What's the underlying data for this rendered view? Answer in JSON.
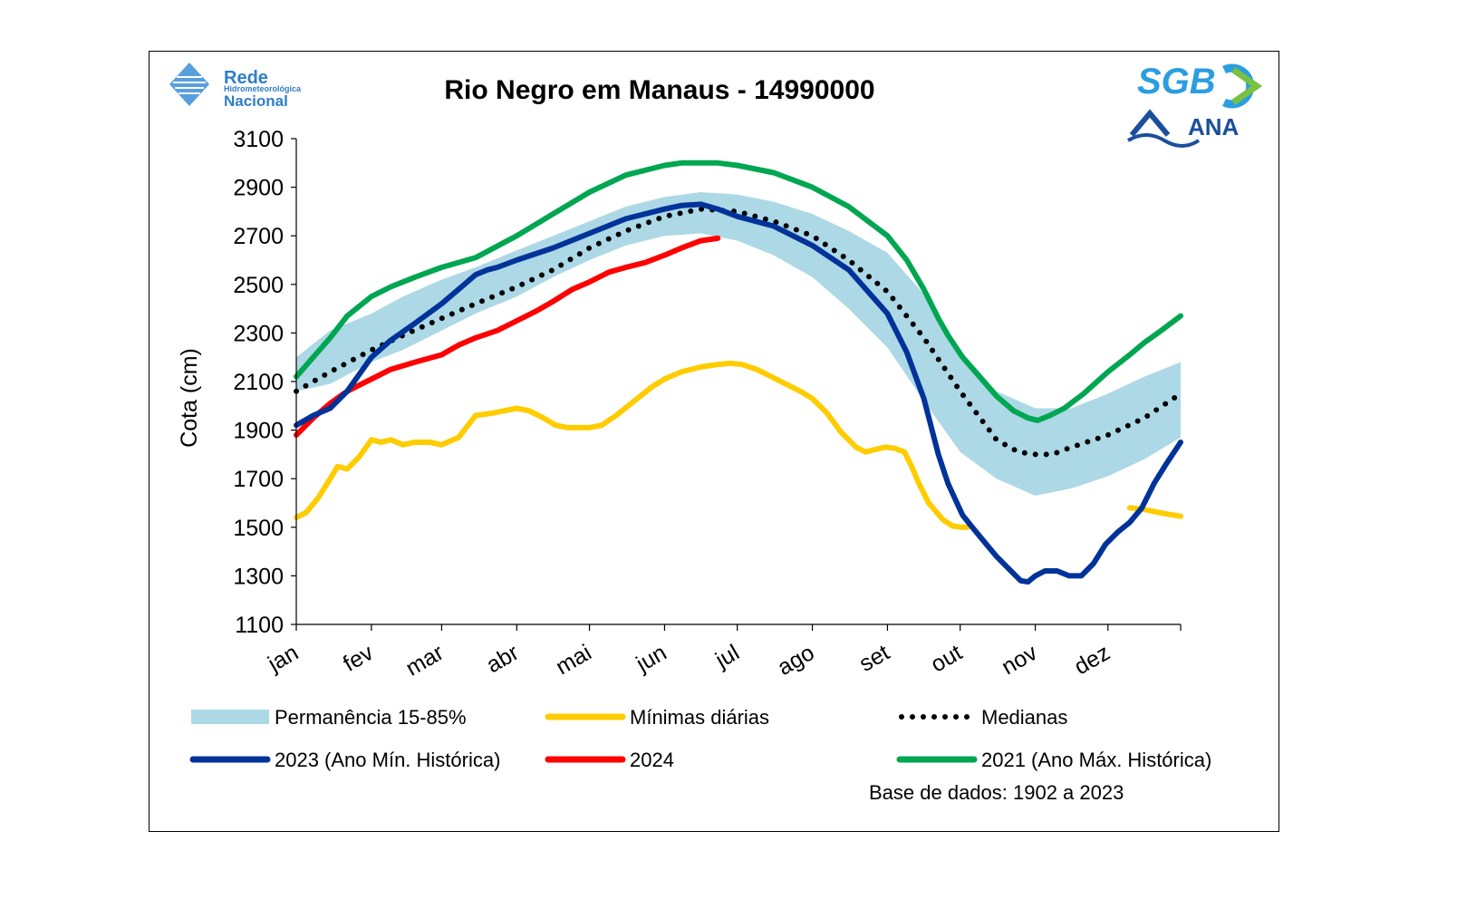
{
  "logos": {
    "rede_line1": "Rede",
    "rede_line2": "Hidrometeorológica",
    "rede_line3": "Nacional",
    "sgb": "SGB",
    "ana": "ANA",
    "icon_names": [
      "rede-hidrometeorologica-logo-icon",
      "sgb-logo-icon",
      "ana-logo-icon"
    ]
  },
  "footer_note": "Base de dados: 1902 a 2023",
  "chart_data": {
    "type": "line",
    "title": "Rio Negro em Manaus - 14990000",
    "ylabel": "Cota (cm)",
    "xlabel": "",
    "ylim": [
      1100,
      3100
    ],
    "yticks": [
      1100,
      1300,
      1500,
      1700,
      1900,
      2100,
      2300,
      2500,
      2700,
      2900,
      3100
    ],
    "xlim_day": [
      1,
      366
    ],
    "months": [
      {
        "label": "jan",
        "start_day": 1
      },
      {
        "label": "fev",
        "start_day": 32
      },
      {
        "label": "mar",
        "start_day": 61
      },
      {
        "label": "abr",
        "start_day": 92
      },
      {
        "label": "mai",
        "start_day": 122
      },
      {
        "label": "jun",
        "start_day": 153
      },
      {
        "label": "jul",
        "start_day": 183
      },
      {
        "label": "ago",
        "start_day": 214
      },
      {
        "label": "set",
        "start_day": 245
      },
      {
        "label": "out",
        "start_day": 275
      },
      {
        "label": "nov",
        "start_day": 306
      },
      {
        "label": "dez",
        "start_day": 336
      }
    ],
    "grid": false,
    "legend_placement": "bottom",
    "band": {
      "name": "Permanência 15-85%",
      "color": "#add8e6",
      "x": [
        1,
        15,
        32,
        45,
        61,
        75,
        92,
        107,
        122,
        137,
        153,
        168,
        183,
        198,
        214,
        229,
        245,
        260,
        275,
        290,
        306,
        321,
        336,
        351,
        366
      ],
      "lower": [
        2060,
        2090,
        2180,
        2230,
        2310,
        2380,
        2450,
        2530,
        2600,
        2660,
        2700,
        2710,
        2680,
        2620,
        2530,
        2400,
        2240,
        2020,
        1810,
        1700,
        1630,
        1660,
        1710,
        1780,
        1870
      ],
      "upper": [
        2200,
        2310,
        2380,
        2450,
        2520,
        2570,
        2640,
        2700,
        2760,
        2820,
        2860,
        2880,
        2870,
        2840,
        2790,
        2720,
        2630,
        2460,
        2230,
        2060,
        1990,
        1990,
        2050,
        2120,
        2180
      ]
    },
    "series": [
      {
        "name": "Mínimas diárias",
        "color": "#ffcc00",
        "style": "solid",
        "x": [
          1,
          5,
          10,
          15,
          18,
          22,
          27,
          32,
          36,
          40,
          45,
          50,
          56,
          61,
          68,
          75,
          82,
          87,
          92,
          97,
          103,
          108,
          113,
          118,
          122,
          127,
          133,
          138,
          143,
          148,
          153,
          160,
          168,
          175,
          180,
          185,
          191,
          197,
          203,
          209,
          214,
          220,
          226,
          232,
          236,
          240,
          244,
          248,
          252,
          255,
          258,
          262,
          268,
          272,
          276,
          278
        ],
        "y": [
          1540,
          1560,
          1620,
          1700,
          1750,
          1740,
          1790,
          1860,
          1850,
          1860,
          1840,
          1850,
          1850,
          1840,
          1870,
          1960,
          1970,
          1980,
          1990,
          1980,
          1950,
          1920,
          1910,
          1910,
          1910,
          1920,
          1960,
          2000,
          2040,
          2080,
          2110,
          2140,
          2160,
          2170,
          2175,
          2170,
          2150,
          2120,
          2090,
          2060,
          2030,
          1970,
          1890,
          1830,
          1810,
          1820,
          1830,
          1825,
          1810,
          1750,
          1680,
          1600,
          1530,
          1505,
          1500,
          1500
        ],
        "x2": [
          345,
          350,
          355,
          360,
          366
        ],
        "y2": [
          1580,
          1575,
          1565,
          1555,
          1545
        ]
      },
      {
        "name": "Medianas",
        "color": "#000000",
        "style": "dotted",
        "x": [
          1,
          15,
          32,
          45,
          61,
          75,
          92,
          107,
          122,
          137,
          153,
          168,
          183,
          198,
          214,
          229,
          245,
          260,
          275,
          290,
          299,
          306,
          313,
          321,
          336,
          351,
          366
        ],
        "y": [
          2060,
          2140,
          2230,
          2290,
          2360,
          2420,
          2490,
          2560,
          2650,
          2720,
          2780,
          2810,
          2800,
          2760,
          2700,
          2600,
          2470,
          2280,
          2060,
          1860,
          1810,
          1800,
          1800,
          1830,
          1880,
          1950,
          2050
        ]
      },
      {
        "name": "2023 (Ano Mín. Histórica)",
        "color": "#003399",
        "style": "solid",
        "x": [
          1,
          8,
          15,
          22,
          32,
          40,
          50,
          61,
          68,
          75,
          80,
          84,
          92,
          107,
          122,
          137,
          153,
          160,
          168,
          175,
          183,
          198,
          214,
          229,
          245,
          253,
          260,
          266,
          270,
          276,
          280,
          285,
          290,
          295,
          300,
          303,
          306,
          310,
          315,
          320,
          325,
          330,
          335,
          340,
          345,
          350,
          355,
          360,
          366
        ],
        "y": [
          1920,
          1960,
          1990,
          2060,
          2200,
          2270,
          2340,
          2420,
          2480,
          2540,
          2560,
          2570,
          2600,
          2650,
          2710,
          2770,
          2810,
          2825,
          2830,
          2810,
          2780,
          2740,
          2660,
          2560,
          2380,
          2220,
          2030,
          1800,
          1680,
          1550,
          1500,
          1440,
          1380,
          1330,
          1280,
          1275,
          1300,
          1320,
          1320,
          1300,
          1300,
          1350,
          1430,
          1480,
          1520,
          1580,
          1680,
          1760,
          1850
        ]
      },
      {
        "name": "2024",
        "color": "#ff0000",
        "style": "solid",
        "x": [
          1,
          8,
          15,
          22,
          32,
          40,
          50,
          61,
          68,
          75,
          84,
          92,
          100,
          107,
          115,
          122,
          130,
          137,
          145,
          153,
          160,
          168,
          175
        ],
        "y": [
          1880,
          1950,
          2010,
          2060,
          2110,
          2150,
          2180,
          2210,
          2250,
          2280,
          2310,
          2350,
          2390,
          2430,
          2480,
          2510,
          2550,
          2570,
          2590,
          2620,
          2650,
          2680,
          2690
        ]
      },
      {
        "name": "2021 (Ano Máx. Histórica)",
        "color": "#00a651",
        "style": "solid",
        "x": [
          1,
          8,
          15,
          22,
          32,
          40,
          50,
          61,
          75,
          92,
          107,
          122,
          137,
          153,
          160,
          168,
          175,
          183,
          198,
          214,
          229,
          245,
          253,
          260,
          266,
          270,
          276,
          283,
          290,
          297,
          303,
          307,
          312,
          318,
          326,
          336,
          345,
          351,
          358,
          366
        ],
        "y": [
          2120,
          2200,
          2280,
          2370,
          2450,
          2490,
          2530,
          2570,
          2610,
          2700,
          2790,
          2880,
          2950,
          2990,
          3000,
          3000,
          3000,
          2990,
          2960,
          2900,
          2820,
          2700,
          2600,
          2480,
          2360,
          2290,
          2200,
          2120,
          2040,
          1980,
          1950,
          1940,
          1960,
          1990,
          2050,
          2140,
          2210,
          2260,
          2310,
          2370
        ]
      }
    ],
    "legend": [
      {
        "label": "Permanência 15-85%",
        "kind": "band",
        "color": "#add8e6"
      },
      {
        "label": "Mínimas diárias",
        "kind": "solid",
        "color": "#ffcc00"
      },
      {
        "label": "Medianas",
        "kind": "dotted",
        "color": "#000000"
      },
      {
        "label": "2023 (Ano Mín. Histórica)",
        "kind": "solid",
        "color": "#003399"
      },
      {
        "label": "2024",
        "kind": "solid",
        "color": "#ff0000"
      },
      {
        "label": "2021 (Ano Máx. Histórica)",
        "kind": "solid",
        "color": "#00a651"
      }
    ]
  }
}
